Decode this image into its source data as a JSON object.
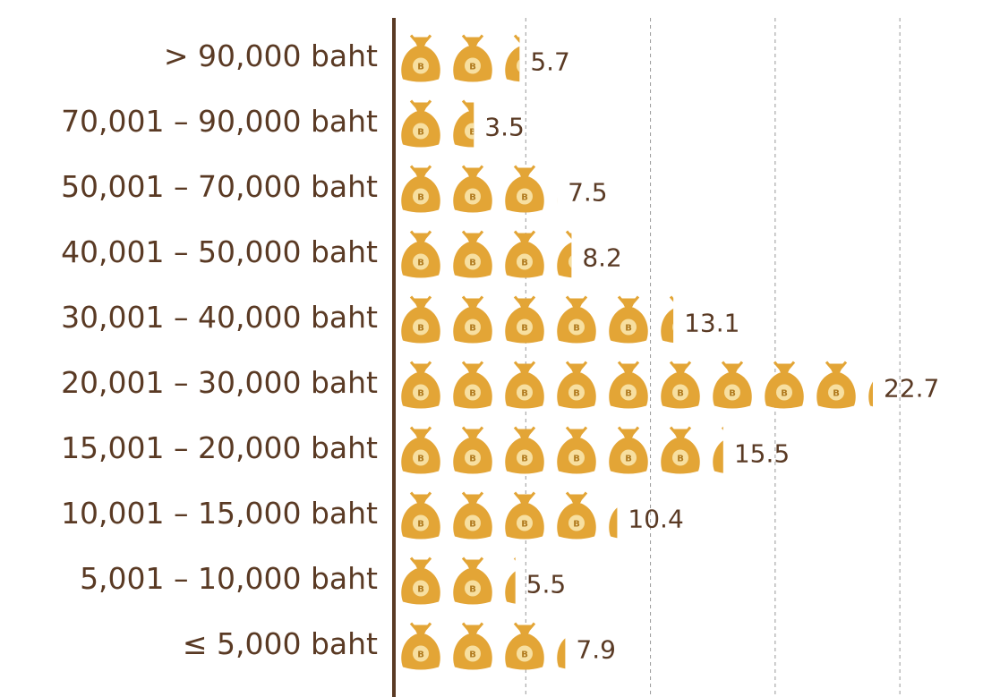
{
  "chart_data": {
    "type": "pictograph",
    "categories": [
      "> 90,000 baht",
      "70,001 – 90,000 baht",
      "50,001 – 70,000 baht",
      "40,001 – 50,000 baht",
      "30,001 – 40,000 baht",
      "20,001 – 30,000 baht",
      "15,001 – 20,000 baht",
      "10,001 – 15,000 baht",
      "5,001 – 10,000 baht",
      "≤ 5,000 baht"
    ],
    "values": [
      5.7,
      3.5,
      7.5,
      8.2,
      13.1,
      22.7,
      15.5,
      10.4,
      5.5,
      7.9
    ],
    "color": "#e3a536",
    "xlim": [
      0,
      28
    ],
    "xticks": [
      6,
      12,
      18,
      24
    ],
    "grid": true
  }
}
